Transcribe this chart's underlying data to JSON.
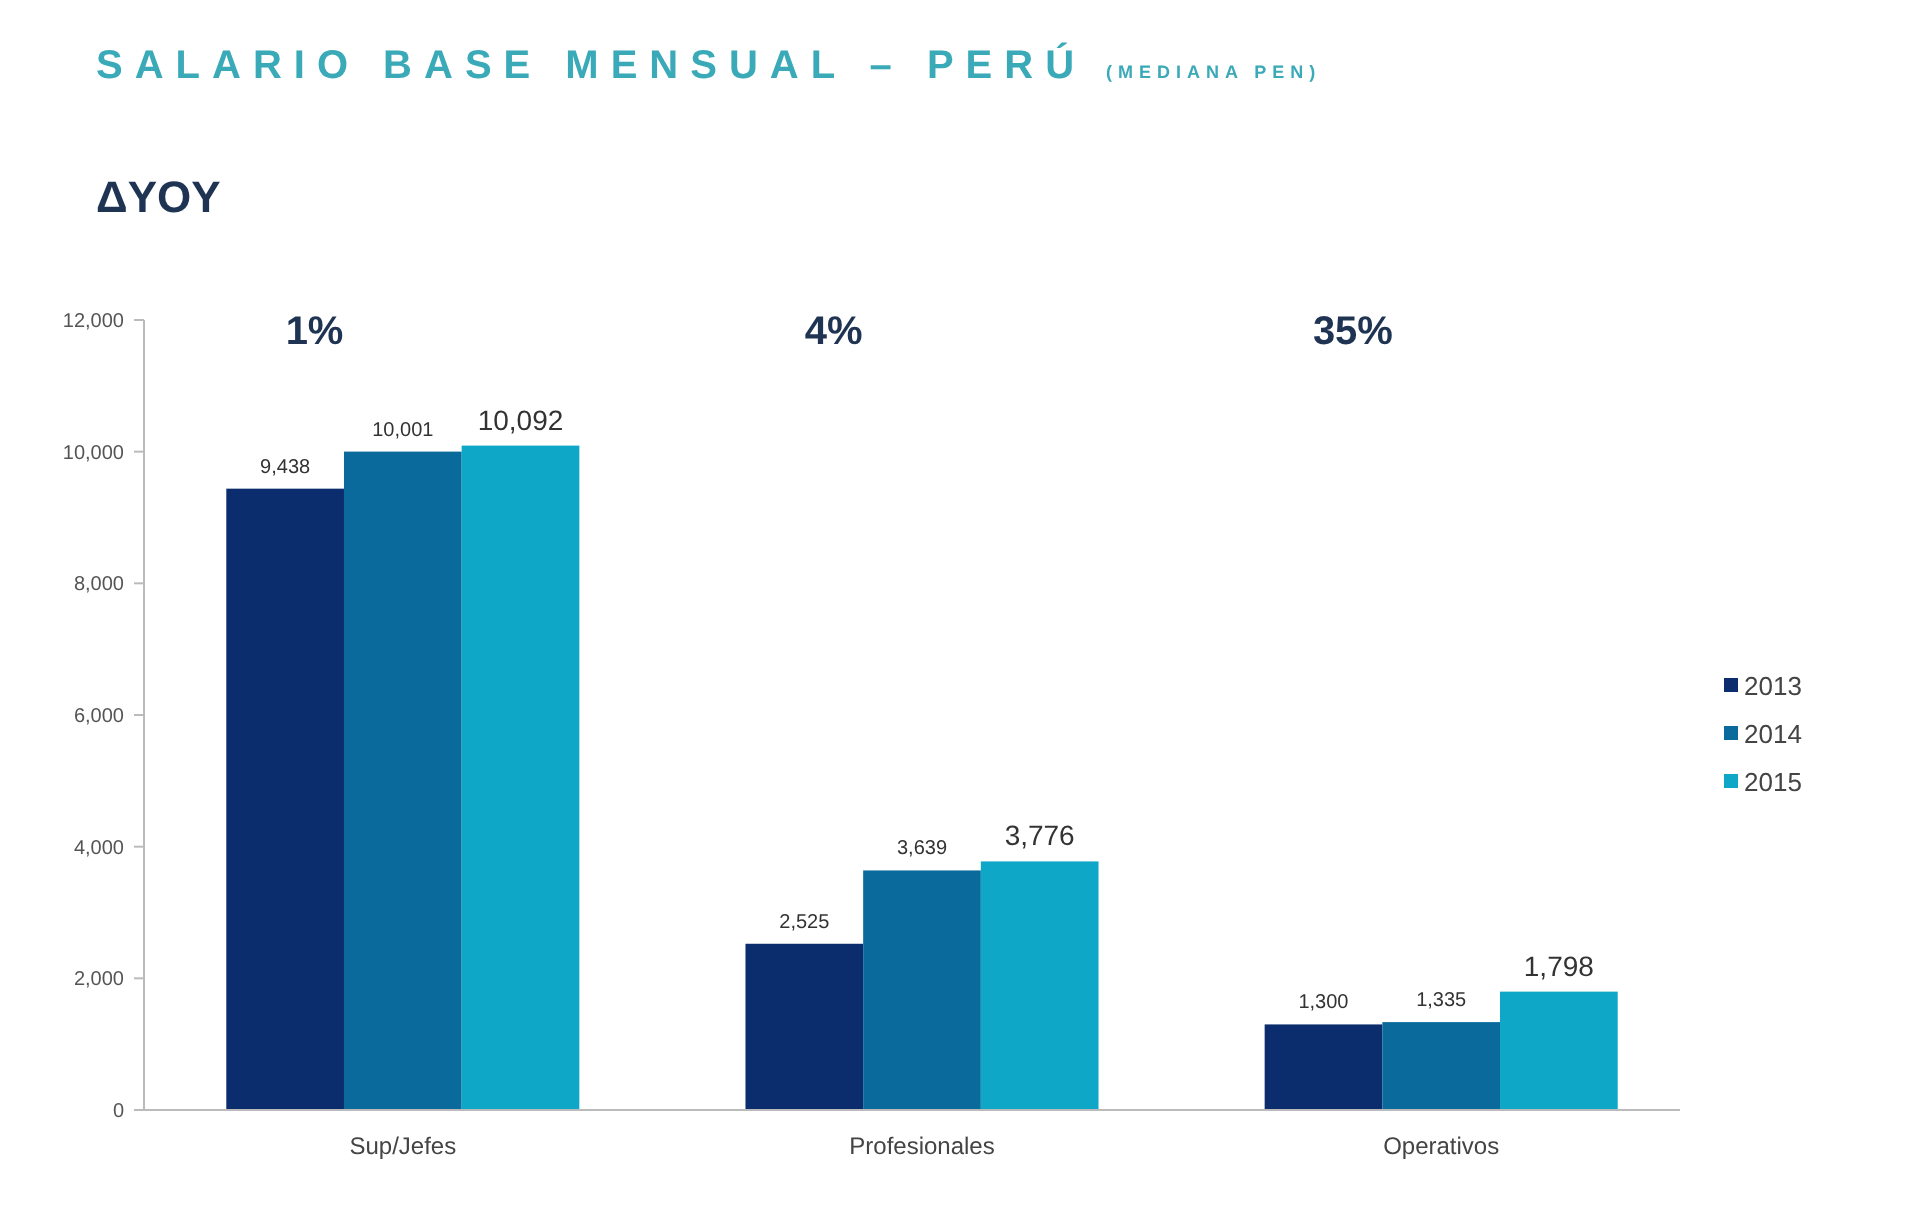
{
  "chart_data": {
    "type": "bar",
    "title": "SALARIO BASE MENSUAL – PERÚ",
    "subtitle": "(MEDIANA PEN)",
    "categories": [
      "Sup/Jefes",
      "Profesionales",
      "Operativos"
    ],
    "series": [
      {
        "name": "2013",
        "color": "#0b2d6e",
        "values": [
          9438,
          2525,
          1300
        ],
        "value_labels": [
          "9,438",
          "2,525",
          "1,300"
        ]
      },
      {
        "name": "2014",
        "color": "#0a6a9c",
        "values": [
          10001,
          3639,
          1335
        ],
        "value_labels": [
          "10,001",
          "3,639",
          "1,335"
        ]
      },
      {
        "name": "2015",
        "color": "#0ea7c7",
        "values": [
          10092,
          3776,
          1798
        ],
        "value_labels": [
          "10,092",
          "3,776",
          "1,798"
        ]
      }
    ],
    "ylim": [
      0,
      12000
    ],
    "yticks": [
      {
        "value": 0,
        "label": "0"
      },
      {
        "value": 2000,
        "label": "2,000"
      },
      {
        "value": 4000,
        "label": "4,000"
      },
      {
        "value": 6000,
        "label": "6,000"
      },
      {
        "value": 8000,
        "label": "8,000"
      },
      {
        "value": 10000,
        "label": "10,000"
      },
      {
        "value": 12000,
        "label": "12,000"
      }
    ],
    "legend": "right",
    "annotations": [
      "ΔYOY",
      "1%",
      "4%",
      "35%"
    ]
  }
}
